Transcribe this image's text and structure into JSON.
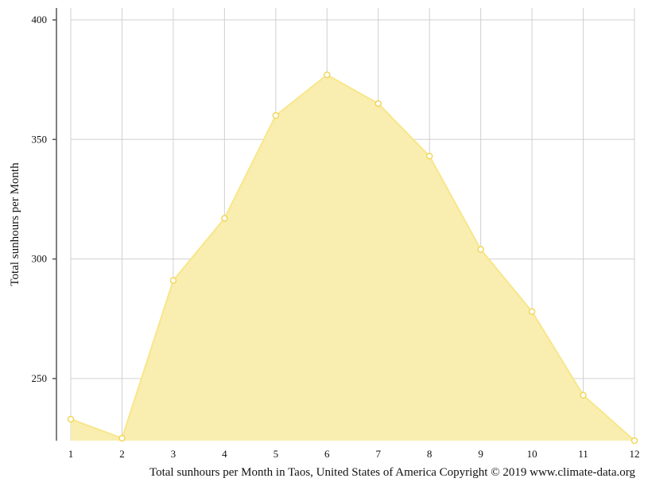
{
  "chart_data": {
    "type": "area",
    "x": [
      "1",
      "2",
      "3",
      "4",
      "5",
      "6",
      "7",
      "8",
      "9",
      "10",
      "11",
      "12"
    ],
    "values": [
      233,
      225,
      291,
      317,
      360,
      377,
      365,
      343,
      304,
      278,
      243,
      224
    ],
    "ylabel": "Total sunhours per Month",
    "xlabel": "",
    "title": "",
    "caption": "Total sunhours per Month in Taos, United States of America Copyright © 2019 www.climate-data.org",
    "yticks": [
      "250",
      "300",
      "350",
      "400"
    ],
    "ylim": [
      224,
      405
    ],
    "grid": true,
    "legend": "none",
    "colors": {
      "fill": "#f9eeb0",
      "stroke": "#f8e68a",
      "point_stroke": "#f2d65a"
    }
  }
}
